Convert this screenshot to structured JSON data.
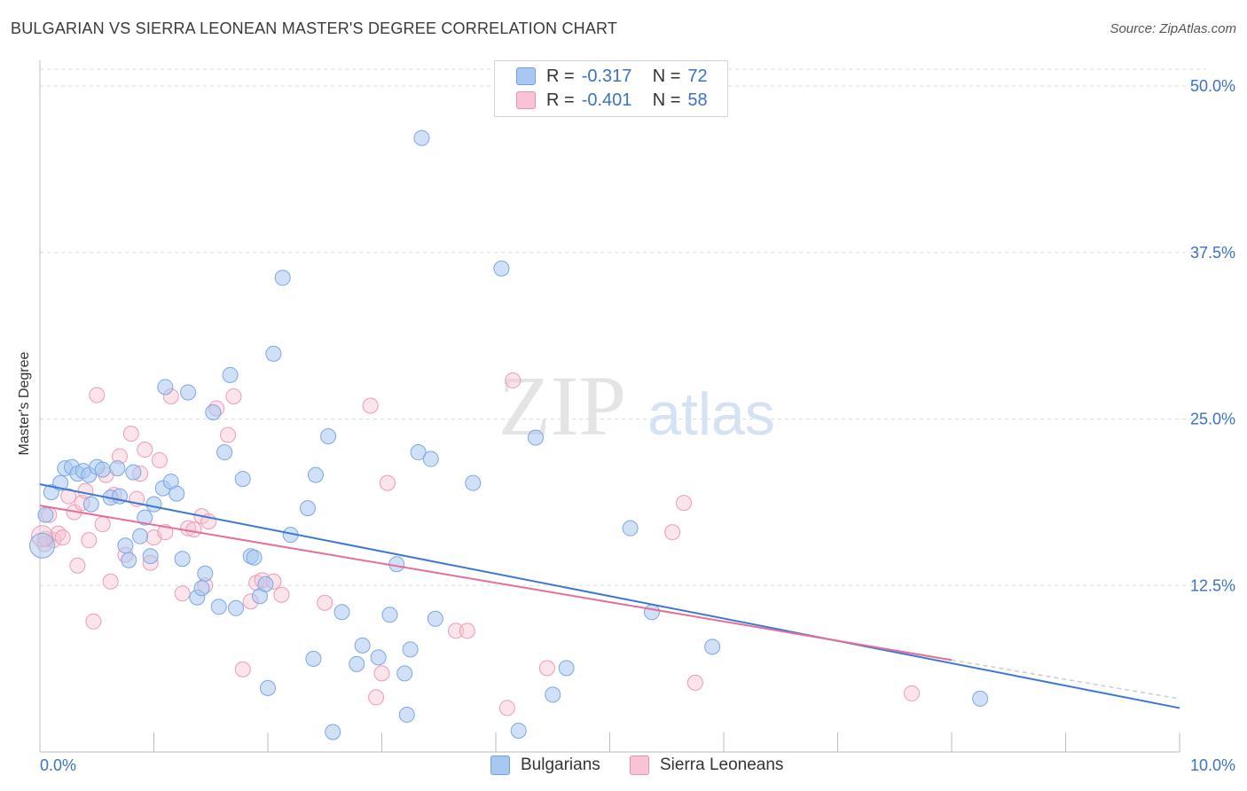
{
  "title": "BULGARIAN VS SIERRA LEONEAN MASTER'S DEGREE CORRELATION CHART",
  "source": "Source: ZipAtlas.com",
  "watermark": {
    "part1": "ZIP",
    "part2": "atlas"
  },
  "legend": {
    "rows": [
      {
        "r_label": "R =",
        "r_value": "-0.317",
        "n_label": "N =",
        "n_value": "72",
        "color": "#a9c8f0",
        "border": "#6f9fe0"
      },
      {
        "r_label": "R =",
        "r_value": "-0.401",
        "n_label": "N =",
        "n_value": "58",
        "color": "#f8c3d3",
        "border": "#ea90ad"
      }
    ]
  },
  "bottom_legend": [
    {
      "label": "Bulgarians",
      "color": "#a9c8f0",
      "border": "#6f9fe0"
    },
    {
      "label": "Sierra Leoneans",
      "color": "#f8c3d3",
      "border": "#ea90ad"
    }
  ],
  "chart_data": {
    "type": "scatter",
    "xlabel": "",
    "ylabel": "Master's Degree",
    "xlim": [
      0,
      10
    ],
    "ylim": [
      0,
      50
    ],
    "x_tick_labels": [
      {
        "value": 0,
        "label": "0.0%"
      },
      {
        "value": 10,
        "label": "10.0%"
      }
    ],
    "y_tick_labels": [
      {
        "value": 12.5,
        "label": "12.5%"
      },
      {
        "value": 25,
        "label": "25.0%"
      },
      {
        "value": 37.5,
        "label": "37.5%"
      },
      {
        "value": 50,
        "label": "50.0%"
      }
    ],
    "grid": "horizontal dashed",
    "colors": {
      "bulgarians": "#3b78d4",
      "sierra_leoneans": "#e56e9a"
    },
    "series": [
      {
        "name": "Bulgarians",
        "trend": {
          "x0": 0,
          "y0": 20.1,
          "x1": 10,
          "y1": 3.3
        },
        "points": [
          [
            0.05,
            17.8
          ],
          [
            0.1,
            19.5
          ],
          [
            0.18,
            20.2
          ],
          [
            0.22,
            21.3
          ],
          [
            0.28,
            21.4
          ],
          [
            0.33,
            20.9
          ],
          [
            0.38,
            21.1
          ],
          [
            0.43,
            20.8
          ],
          [
            0.45,
            18.6
          ],
          [
            0.5,
            21.4
          ],
          [
            0.55,
            21.2
          ],
          [
            0.62,
            19.1
          ],
          [
            0.68,
            21.3
          ],
          [
            0.7,
            19.2
          ],
          [
            0.75,
            15.5
          ],
          [
            0.78,
            14.4
          ],
          [
            0.82,
            21.0
          ],
          [
            0.88,
            16.2
          ],
          [
            0.92,
            17.6
          ],
          [
            0.97,
            14.7
          ],
          [
            1.0,
            18.6
          ],
          [
            1.08,
            19.8
          ],
          [
            1.1,
            27.4
          ],
          [
            1.15,
            20.3
          ],
          [
            1.2,
            19.4
          ],
          [
            1.25,
            14.5
          ],
          [
            1.3,
            27.0
          ],
          [
            1.38,
            11.6
          ],
          [
            1.42,
            12.3
          ],
          [
            1.45,
            13.4
          ],
          [
            1.52,
            25.5
          ],
          [
            1.57,
            10.9
          ],
          [
            1.62,
            22.5
          ],
          [
            1.67,
            28.3
          ],
          [
            1.72,
            10.8
          ],
          [
            1.78,
            20.5
          ],
          [
            1.85,
            14.7
          ],
          [
            1.88,
            14.6
          ],
          [
            1.93,
            11.7
          ],
          [
            1.98,
            12.6
          ],
          [
            2.0,
            4.8
          ],
          [
            2.05,
            29.9
          ],
          [
            2.13,
            35.6
          ],
          [
            2.2,
            16.3
          ],
          [
            2.35,
            18.3
          ],
          [
            2.4,
            7.0
          ],
          [
            2.42,
            20.8
          ],
          [
            2.53,
            23.7
          ],
          [
            2.57,
            1.5
          ],
          [
            2.65,
            10.5
          ],
          [
            2.78,
            6.6
          ],
          [
            2.83,
            8.0
          ],
          [
            2.97,
            7.1
          ],
          [
            3.07,
            10.3
          ],
          [
            3.13,
            14.1
          ],
          [
            3.2,
            5.9
          ],
          [
            3.22,
            2.8
          ],
          [
            3.25,
            7.7
          ],
          [
            3.32,
            22.5
          ],
          [
            3.35,
            46.1
          ],
          [
            3.43,
            22.0
          ],
          [
            3.47,
            10.0
          ],
          [
            3.8,
            20.2
          ],
          [
            4.05,
            36.3
          ],
          [
            4.2,
            1.6
          ],
          [
            4.35,
            23.6
          ],
          [
            4.5,
            4.3
          ],
          [
            4.62,
            6.3
          ],
          [
            5.18,
            16.8
          ],
          [
            5.37,
            10.5
          ],
          [
            5.9,
            7.9
          ],
          [
            8.25,
            4.0
          ]
        ]
      },
      {
        "name": "Sierra Leoneans",
        "trend": {
          "x0": 0,
          "y0": 18.5,
          "x1": 8.0,
          "y1": 6.9
        },
        "points": [
          [
            0.04,
            15.6
          ],
          [
            0.08,
            17.8
          ],
          [
            0.12,
            15.9
          ],
          [
            0.16,
            16.4
          ],
          [
            0.2,
            16.1
          ],
          [
            0.25,
            19.2
          ],
          [
            0.3,
            18.0
          ],
          [
            0.33,
            14.0
          ],
          [
            0.37,
            18.7
          ],
          [
            0.4,
            19.6
          ],
          [
            0.43,
            15.9
          ],
          [
            0.47,
            9.8
          ],
          [
            0.5,
            26.8
          ],
          [
            0.55,
            17.1
          ],
          [
            0.58,
            20.8
          ],
          [
            0.62,
            12.8
          ],
          [
            0.65,
            19.3
          ],
          [
            0.7,
            22.2
          ],
          [
            0.75,
            14.8
          ],
          [
            0.8,
            23.9
          ],
          [
            0.85,
            19.0
          ],
          [
            0.88,
            20.9
          ],
          [
            0.92,
            22.7
          ],
          [
            0.97,
            14.2
          ],
          [
            1.0,
            16.1
          ],
          [
            1.05,
            21.9
          ],
          [
            1.1,
            16.5
          ],
          [
            1.15,
            26.7
          ],
          [
            1.25,
            11.9
          ],
          [
            1.3,
            16.8
          ],
          [
            1.35,
            16.7
          ],
          [
            1.42,
            17.7
          ],
          [
            1.45,
            12.5
          ],
          [
            1.48,
            17.3
          ],
          [
            1.55,
            25.8
          ],
          [
            1.65,
            23.8
          ],
          [
            1.7,
            26.7
          ],
          [
            1.78,
            6.2
          ],
          [
            1.85,
            11.3
          ],
          [
            1.9,
            12.7
          ],
          [
            1.95,
            12.9
          ],
          [
            2.05,
            12.8
          ],
          [
            2.12,
            11.8
          ],
          [
            2.5,
            11.2
          ],
          [
            2.9,
            26.0
          ],
          [
            2.95,
            4.1
          ],
          [
            3.0,
            5.9
          ],
          [
            3.05,
            20.2
          ],
          [
            3.65,
            9.1
          ],
          [
            3.75,
            9.1
          ],
          [
            4.1,
            3.3
          ],
          [
            4.15,
            27.9
          ],
          [
            4.45,
            6.3
          ],
          [
            5.55,
            16.5
          ],
          [
            5.65,
            18.7
          ],
          [
            5.75,
            5.2
          ],
          [
            7.65,
            4.4
          ],
          [
            0.05,
            16.0
          ]
        ]
      }
    ]
  }
}
